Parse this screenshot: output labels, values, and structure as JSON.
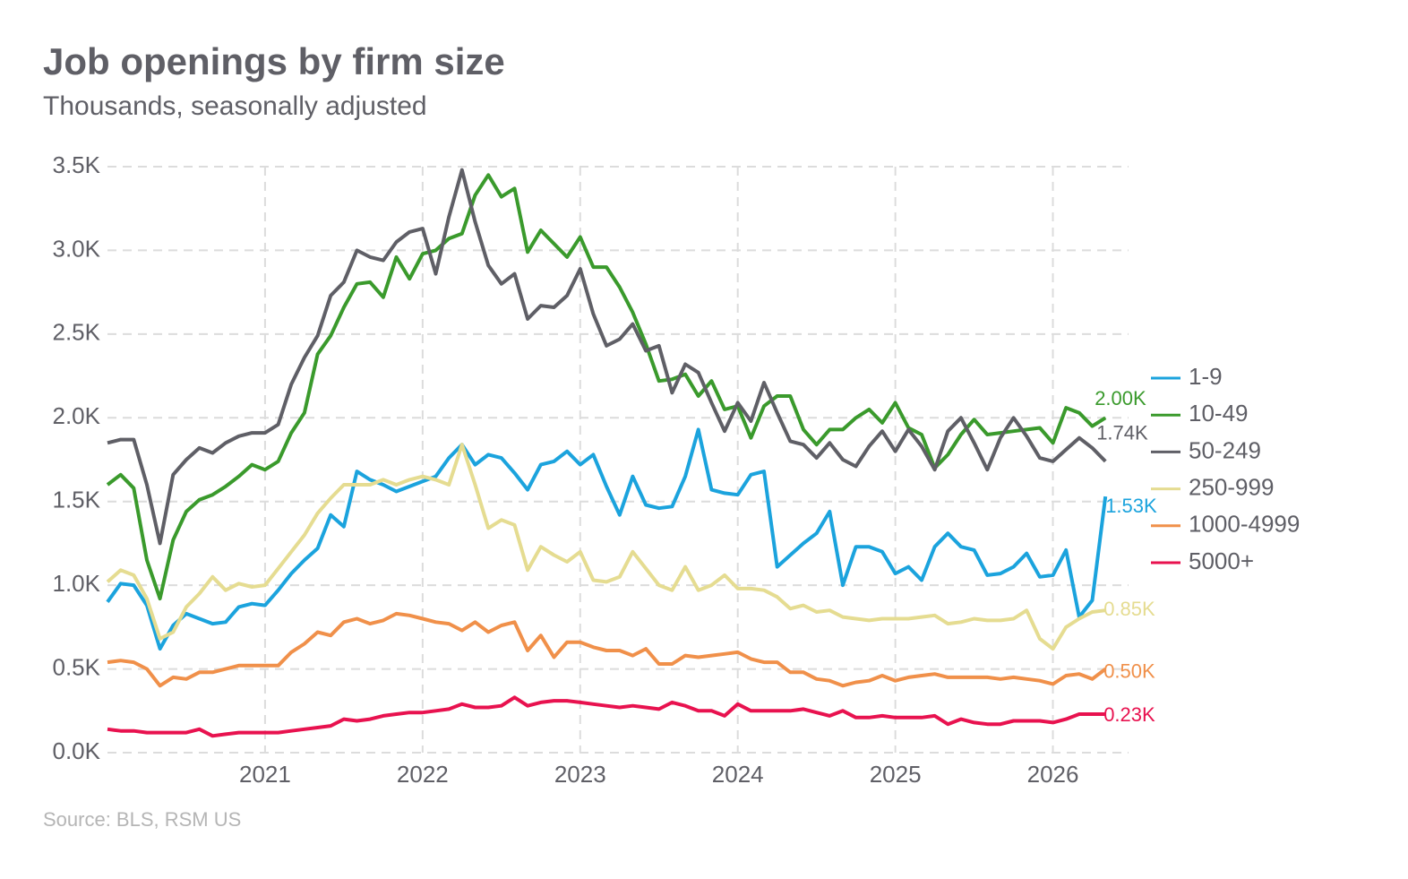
{
  "chart_data": {
    "type": "line",
    "title": "Job openings by firm size",
    "subtitle": "Thousands, seasonally adjusted",
    "source": "Source: BLS, RSM US",
    "x": [
      "2020-01",
      "2020-02",
      "2020-03",
      "2020-04",
      "2020-05",
      "2020-06",
      "2020-07",
      "2020-08",
      "2020-09",
      "2020-10",
      "2020-11",
      "2020-12",
      "2021-01",
      "2021-02",
      "2021-03",
      "2021-04",
      "2021-05",
      "2021-06",
      "2021-07",
      "2021-08",
      "2021-09",
      "2021-10",
      "2021-11",
      "2021-12",
      "2022-01",
      "2022-02",
      "2022-03",
      "2022-04",
      "2022-05",
      "2022-06",
      "2022-07",
      "2022-08",
      "2022-09",
      "2022-10",
      "2022-11",
      "2022-12",
      "2023-01",
      "2023-02",
      "2023-03",
      "2023-04",
      "2023-05",
      "2023-06",
      "2023-07",
      "2023-08",
      "2023-09",
      "2023-10",
      "2023-11",
      "2023-12",
      "2024-01",
      "2024-02",
      "2024-03",
      "2024-04",
      "2024-05",
      "2024-06",
      "2024-07",
      "2024-08",
      "2024-09",
      "2024-10",
      "2024-11",
      "2024-12",
      "2025-01",
      "2025-02",
      "2025-03",
      "2025-04",
      "2025-05",
      "2025-06",
      "2025-07",
      "2025-08",
      "2025-09",
      "2025-10",
      "2025-11",
      "2025-12",
      "2026-01",
      "2026-02",
      "2026-03",
      "2026-04",
      "2026-05"
    ],
    "xlim": [
      2020,
      2026.48
    ],
    "xticks": [
      2021,
      2022,
      2023,
      2024,
      2025,
      2026
    ],
    "ylim": [
      0,
      3.5
    ],
    "yticks": [
      {
        "value": 0,
        "label": "0.0K"
      },
      {
        "value": 0.5,
        "label": "0.5K"
      },
      {
        "value": 1,
        "label": "1.0K"
      },
      {
        "value": 1.5,
        "label": "1.5K"
      },
      {
        "value": 2,
        "label": "2.0K"
      },
      {
        "value": 2.5,
        "label": "2.5K"
      },
      {
        "value": 3,
        "label": "3.0K"
      },
      {
        "value": 3.5,
        "label": "3.5K"
      }
    ],
    "grid": true,
    "legend": "right",
    "series": [
      {
        "name": "1-9",
        "color": "#1ba3dd",
        "values": [
          0.9,
          1.01,
          1.0,
          0.88,
          0.62,
          0.76,
          0.83,
          0.8,
          0.77,
          0.78,
          0.87,
          0.89,
          0.88,
          0.97,
          1.07,
          1.15,
          1.22,
          1.42,
          1.35,
          1.68,
          1.63,
          1.6,
          1.56,
          1.59,
          1.62,
          1.65,
          1.76,
          1.84,
          1.72,
          1.78,
          1.76,
          1.67,
          1.57,
          1.72,
          1.74,
          1.8,
          1.72,
          1.78,
          1.59,
          1.42,
          1.65,
          1.48,
          1.46,
          1.47,
          1.65,
          1.93,
          1.57,
          1.55,
          1.54,
          1.66,
          1.68,
          1.11,
          1.18,
          1.25,
          1.31,
          1.44,
          1.0,
          1.23,
          1.23,
          1.2,
          1.07,
          1.11,
          1.03,
          1.23,
          1.31,
          1.23,
          1.21,
          1.06,
          1.07,
          1.11,
          1.19,
          1.05,
          1.06,
          1.21,
          0.81,
          0.91,
          1.53
        ],
        "value_labels": [
          null,
          null,
          null,
          null,
          null,
          null,
          null,
          null,
          null,
          null,
          null,
          null,
          null,
          null,
          null,
          null,
          null,
          null,
          null,
          null,
          null,
          null,
          null,
          null,
          null,
          null,
          null,
          null,
          null,
          null,
          null,
          null,
          null,
          null,
          null,
          null,
          null,
          null,
          null,
          null,
          null,
          null,
          null,
          null,
          null,
          null,
          null,
          null,
          null,
          null,
          null,
          null,
          null,
          null,
          null,
          null,
          null,
          null,
          null,
          null,
          null,
          null,
          null,
          null,
          null,
          null,
          null,
          null,
          null,
          null,
          null,
          null,
          null,
          null,
          null,
          null,
          "1.53K"
        ]
      },
      {
        "name": "10-49",
        "color": "#3a9a2c",
        "values": [
          1.6,
          1.66,
          1.58,
          1.15,
          0.92,
          1.27,
          1.44,
          1.51,
          1.54,
          1.59,
          1.65,
          1.72,
          1.69,
          1.74,
          1.91,
          2.03,
          2.38,
          2.49,
          2.66,
          2.8,
          2.81,
          2.72,
          2.96,
          2.83,
          2.98,
          3.0,
          3.07,
          3.1,
          3.33,
          3.45,
          3.32,
          3.37,
          2.99,
          3.12,
          3.04,
          2.96,
          3.08,
          2.9,
          2.9,
          2.78,
          2.63,
          2.44,
          2.22,
          2.23,
          2.26,
          2.13,
          2.22,
          2.05,
          2.07,
          1.88,
          2.07,
          2.13,
          2.13,
          1.93,
          1.84,
          1.93,
          1.93,
          2.0,
          2.05,
          1.97,
          2.09,
          1.94,
          1.9,
          1.7,
          1.78,
          1.9,
          1.99,
          1.9,
          1.91,
          1.92,
          1.93,
          1.94,
          1.85,
          2.06,
          2.03,
          1.95,
          2.0
        ],
        "value_labels": [
          null,
          null,
          null,
          null,
          null,
          null,
          null,
          null,
          null,
          null,
          null,
          null,
          null,
          null,
          null,
          null,
          null,
          null,
          null,
          null,
          null,
          null,
          null,
          null,
          null,
          null,
          null,
          null,
          null,
          null,
          null,
          null,
          null,
          null,
          null,
          null,
          null,
          null,
          null,
          null,
          null,
          null,
          null,
          null,
          null,
          null,
          null,
          null,
          null,
          null,
          null,
          null,
          null,
          null,
          null,
          null,
          null,
          null,
          null,
          null,
          null,
          null,
          null,
          null,
          null,
          null,
          null,
          null,
          null,
          null,
          null,
          null,
          null,
          null,
          null,
          null,
          "2.00K"
        ]
      },
      {
        "name": "50-249",
        "color": "#5f5f66",
        "values": [
          1.85,
          1.87,
          1.87,
          1.6,
          1.25,
          1.66,
          1.75,
          1.82,
          1.79,
          1.85,
          1.89,
          1.91,
          1.91,
          1.96,
          2.2,
          2.36,
          2.49,
          2.73,
          2.81,
          3.0,
          2.96,
          2.94,
          3.05,
          3.11,
          3.13,
          2.86,
          3.2,
          3.48,
          3.17,
          2.91,
          2.8,
          2.86,
          2.59,
          2.67,
          2.66,
          2.73,
          2.89,
          2.62,
          2.43,
          2.47,
          2.56,
          2.4,
          2.43,
          2.15,
          2.32,
          2.27,
          2.09,
          1.92,
          2.09,
          1.98,
          2.21,
          2.03,
          1.86,
          1.84,
          1.76,
          1.85,
          1.75,
          1.71,
          1.83,
          1.92,
          1.8,
          1.93,
          1.83,
          1.69,
          1.92,
          2.0,
          1.85,
          1.69,
          1.88,
          2.0,
          1.89,
          1.76,
          1.74,
          1.81,
          1.88,
          1.82,
          1.74
        ],
        "value_labels": [
          null,
          null,
          null,
          null,
          null,
          null,
          null,
          null,
          null,
          null,
          null,
          null,
          null,
          null,
          null,
          null,
          null,
          null,
          null,
          null,
          null,
          null,
          null,
          null,
          null,
          null,
          null,
          null,
          null,
          null,
          null,
          null,
          null,
          null,
          null,
          null,
          null,
          null,
          null,
          null,
          null,
          null,
          null,
          null,
          null,
          null,
          null,
          null,
          null,
          null,
          null,
          null,
          null,
          null,
          null,
          null,
          null,
          null,
          null,
          null,
          null,
          null,
          null,
          null,
          null,
          null,
          null,
          null,
          null,
          null,
          null,
          null,
          null,
          null,
          null,
          null,
          "1.74K"
        ]
      },
      {
        "name": "250-999",
        "color": "#e5dc91",
        "values": [
          1.02,
          1.09,
          1.06,
          0.92,
          0.68,
          0.72,
          0.87,
          0.95,
          1.05,
          0.97,
          1.01,
          0.99,
          1.0,
          1.1,
          1.2,
          1.3,
          1.43,
          1.52,
          1.6,
          1.6,
          1.6,
          1.63,
          1.6,
          1.63,
          1.65,
          1.63,
          1.6,
          1.84,
          1.6,
          1.34,
          1.39,
          1.36,
          1.09,
          1.23,
          1.18,
          1.14,
          1.2,
          1.03,
          1.02,
          1.05,
          1.2,
          1.1,
          1.0,
          0.97,
          1.11,
          0.97,
          1.0,
          1.06,
          0.98,
          0.98,
          0.97,
          0.93,
          0.86,
          0.88,
          0.84,
          0.85,
          0.81,
          0.8,
          0.79,
          0.8,
          0.8,
          0.8,
          0.81,
          0.82,
          0.77,
          0.78,
          0.8,
          0.79,
          0.79,
          0.8,
          0.85,
          0.68,
          0.62,
          0.75,
          0.8,
          0.84,
          0.85
        ],
        "value_labels": [
          null,
          null,
          null,
          null,
          null,
          null,
          null,
          null,
          null,
          null,
          null,
          null,
          null,
          null,
          null,
          null,
          null,
          null,
          null,
          null,
          null,
          null,
          null,
          null,
          null,
          null,
          null,
          null,
          null,
          null,
          null,
          null,
          null,
          null,
          null,
          null,
          null,
          null,
          null,
          null,
          null,
          null,
          null,
          null,
          null,
          null,
          null,
          null,
          null,
          null,
          null,
          null,
          null,
          null,
          null,
          null,
          null,
          null,
          null,
          null,
          null,
          null,
          null,
          null,
          null,
          null,
          null,
          null,
          null,
          null,
          null,
          null,
          null,
          null,
          null,
          null,
          "0.85K"
        ]
      },
      {
        "name": "1000-4999",
        "color": "#f0904a",
        "values": [
          0.54,
          0.55,
          0.54,
          0.5,
          0.4,
          0.45,
          0.44,
          0.48,
          0.48,
          0.5,
          0.52,
          0.52,
          0.52,
          0.52,
          0.6,
          0.65,
          0.72,
          0.7,
          0.78,
          0.8,
          0.77,
          0.79,
          0.83,
          0.82,
          0.8,
          0.78,
          0.77,
          0.73,
          0.78,
          0.72,
          0.76,
          0.78,
          0.61,
          0.7,
          0.57,
          0.66,
          0.66,
          0.63,
          0.61,
          0.61,
          0.58,
          0.62,
          0.53,
          0.53,
          0.58,
          0.57,
          0.58,
          0.59,
          0.6,
          0.56,
          0.54,
          0.54,
          0.48,
          0.48,
          0.44,
          0.43,
          0.4,
          0.42,
          0.43,
          0.46,
          0.43,
          0.45,
          0.46,
          0.47,
          0.45,
          0.45,
          0.45,
          0.45,
          0.44,
          0.45,
          0.44,
          0.43,
          0.41,
          0.46,
          0.47,
          0.44,
          0.5
        ],
        "value_labels": [
          null,
          null,
          null,
          null,
          null,
          null,
          null,
          null,
          null,
          null,
          null,
          null,
          null,
          null,
          null,
          null,
          null,
          null,
          null,
          null,
          null,
          null,
          null,
          null,
          null,
          null,
          null,
          null,
          null,
          null,
          null,
          null,
          null,
          null,
          null,
          null,
          null,
          null,
          null,
          null,
          null,
          null,
          null,
          null,
          null,
          null,
          null,
          null,
          null,
          null,
          null,
          null,
          null,
          null,
          null,
          null,
          null,
          null,
          null,
          null,
          null,
          null,
          null,
          null,
          null,
          null,
          null,
          null,
          null,
          null,
          null,
          null,
          null,
          null,
          null,
          null,
          "0.50K"
        ]
      },
      {
        "name": "5000+",
        "color": "#e8124f",
        "values": [
          0.14,
          0.13,
          0.13,
          0.12,
          0.12,
          0.12,
          0.12,
          0.14,
          0.1,
          0.11,
          0.12,
          0.12,
          0.12,
          0.12,
          0.13,
          0.14,
          0.15,
          0.16,
          0.2,
          0.19,
          0.2,
          0.22,
          0.23,
          0.24,
          0.24,
          0.25,
          0.26,
          0.29,
          0.27,
          0.27,
          0.28,
          0.33,
          0.28,
          0.3,
          0.31,
          0.31,
          0.3,
          0.29,
          0.28,
          0.27,
          0.28,
          0.27,
          0.26,
          0.3,
          0.28,
          0.25,
          0.25,
          0.22,
          0.29,
          0.25,
          0.25,
          0.25,
          0.25,
          0.26,
          0.24,
          0.22,
          0.25,
          0.21,
          0.21,
          0.22,
          0.21,
          0.21,
          0.21,
          0.22,
          0.17,
          0.2,
          0.18,
          0.17,
          0.17,
          0.19,
          0.19,
          0.19,
          0.18,
          0.2,
          0.23,
          0.23,
          0.23
        ],
        "value_labels": [
          null,
          null,
          null,
          null,
          null,
          null,
          null,
          null,
          null,
          null,
          null,
          null,
          null,
          null,
          null,
          null,
          null,
          null,
          null,
          null,
          null,
          null,
          null,
          null,
          null,
          null,
          null,
          null,
          null,
          null,
          null,
          null,
          null,
          null,
          null,
          null,
          null,
          null,
          null,
          null,
          null,
          null,
          null,
          null,
          null,
          null,
          null,
          null,
          null,
          null,
          null,
          null,
          null,
          null,
          null,
          null,
          null,
          null,
          null,
          null,
          null,
          null,
          null,
          null,
          null,
          null,
          null,
          null,
          null,
          null,
          null,
          null,
          null,
          null,
          null,
          null,
          "0.23K"
        ]
      }
    ]
  }
}
